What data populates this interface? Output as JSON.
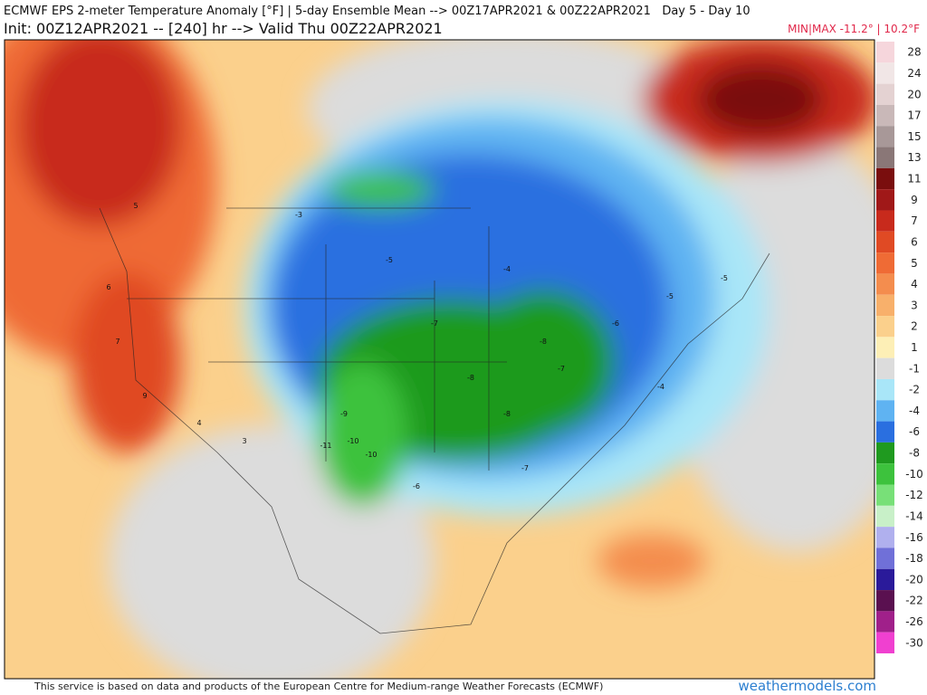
{
  "header": {
    "title": "ECMWF EPS 2-meter Temperature Anomaly [°F] | 5-day Ensemble Mean --> 00Z17APR2021 & 00Z22APR2021   Day 5 - Day 10",
    "subtitle": "Init: 00Z12APR2021 -- [240] hr --> Valid Thu 00Z22APR2021",
    "minmax": "MIN|MAX -11.2° | 10.2°F"
  },
  "colorbar": [
    {
      "label": 28,
      "color": "#f6d6dc"
    },
    {
      "label": 24,
      "color": "#f1e6e6"
    },
    {
      "label": 20,
      "color": "#e4d2d2"
    },
    {
      "label": 17,
      "color": "#c9b8b8"
    },
    {
      "label": 15,
      "color": "#a89898"
    },
    {
      "label": 13,
      "color": "#8a7777"
    },
    {
      "label": 11,
      "color": "#7a0e0e"
    },
    {
      "label": 9,
      "color": "#a01818"
    },
    {
      "label": 7,
      "color": "#c82a1c"
    },
    {
      "label": 6,
      "color": "#e04a24"
    },
    {
      "label": 5,
      "color": "#ef6b35"
    },
    {
      "label": 4,
      "color": "#f48d4e"
    },
    {
      "label": 3,
      "color": "#f8b06b"
    },
    {
      "label": 2,
      "color": "#fbd08c"
    },
    {
      "label": 1,
      "color": "#fdefb6"
    },
    {
      "label": -1,
      "color": "#dcdcdc"
    },
    {
      "label": -2,
      "color": "#a9e6f8"
    },
    {
      "label": -4,
      "color": "#5fb3f2"
    },
    {
      "label": -6,
      "color": "#2a6fe0"
    },
    {
      "label": -8,
      "color": "#1f9a1f"
    },
    {
      "label": -10,
      "color": "#3dc23d"
    },
    {
      "label": -12,
      "color": "#78e078"
    },
    {
      "label": -14,
      "color": "#c8f0c8"
    },
    {
      "label": -16,
      "color": "#b0b0ee"
    },
    {
      "label": -18,
      "color": "#7070d8"
    },
    {
      "label": -20,
      "color": "#2a1a9a"
    },
    {
      "label": -22,
      "color": "#5a1050"
    },
    {
      "label": -26,
      "color": "#a0208a"
    },
    {
      "label": -30,
      "color": "#f040d0"
    }
  ],
  "map_labels": [
    5,
    6,
    7,
    9,
    4,
    3,
    -3,
    -5,
    -7,
    -8,
    -9,
    -10,
    -11,
    -10,
    -8,
    -7,
    -6,
    -5,
    -4,
    -6,
    -7,
    -8,
    -5,
    -4
  ],
  "footer": "This service is based on data and products of the European Centre for Medium-range Weather Forecasts (ECMWF)",
  "site": "weathermodels.com"
}
